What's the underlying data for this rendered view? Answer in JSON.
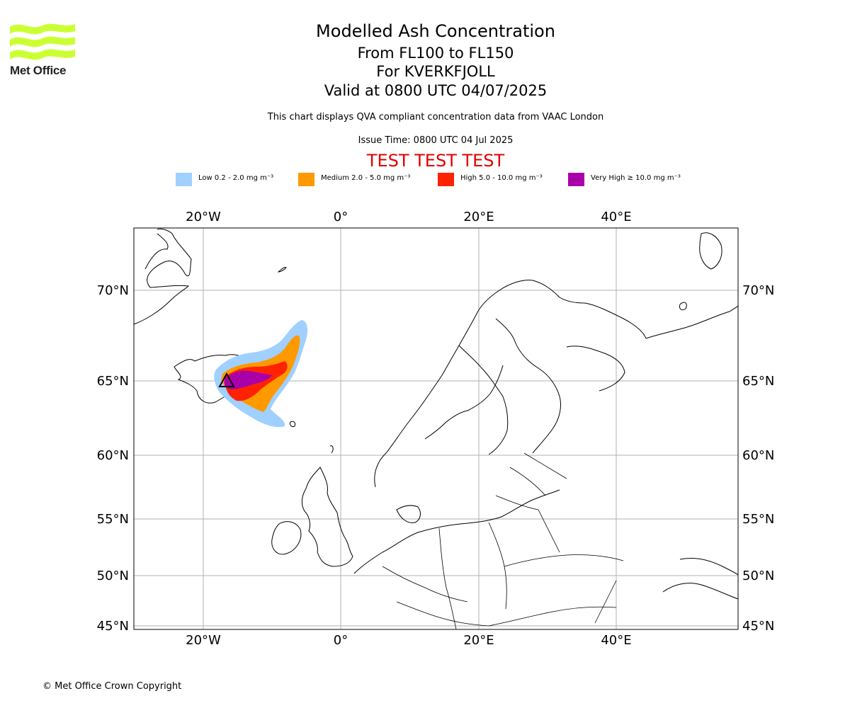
{
  "logo": {
    "text": "Met Office",
    "color": "#ccff33"
  },
  "header": {
    "title": "Modelled Ash Concentration",
    "level": "From FL100 to FL150",
    "volcano": "For KVERKFJOLL",
    "valid": "Valid at 0800 UTC 04/07/2025",
    "subtitle": "This chart displays QVA compliant concentration data from VAAC London",
    "issue_time": "Issue Time: 0800 UTC 04 Jul 2025",
    "test_banner": "TEST TEST TEST"
  },
  "legend": [
    {
      "label": "Low 0.2 - 2.0 mg m⁻³",
      "color": "#a0d0ff"
    },
    {
      "label": "Medium 2.0 - 5.0 mg m⁻³",
      "color": "#ff9900"
    },
    {
      "label": "High 5.0 - 10.0 mg m⁻³",
      "color": "#ff2200"
    },
    {
      "label": "Very High ≥ 10.0 mg m⁻³",
      "color": "#aa00aa"
    }
  ],
  "map": {
    "lon_ticks": [
      "20°W",
      "0°",
      "20°E",
      "40°E"
    ],
    "lat_ticks": [
      "70°N",
      "65°N",
      "60°N",
      "55°N",
      "50°N",
      "45°N"
    ],
    "gridlines": true
  },
  "footer": {
    "copyright": "© Met Office Crown Copyright"
  }
}
